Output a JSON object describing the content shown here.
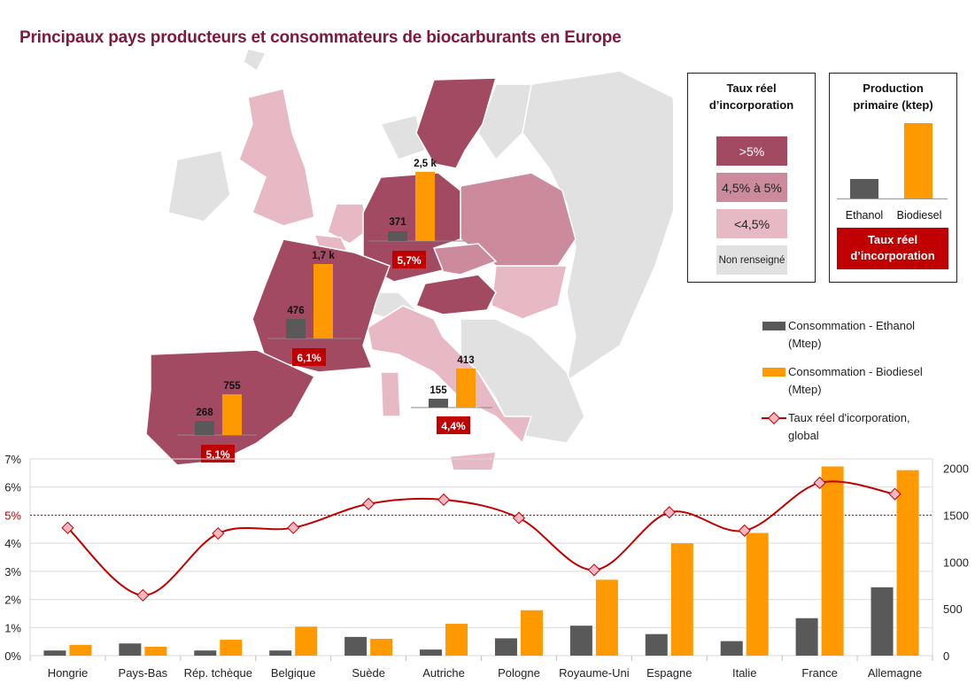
{
  "title": "Principaux pays producteurs et consommateurs de biocarburants en Europe",
  "legend_taux": {
    "title_line1": "Taux réel",
    "title_line2": "d’incorporation",
    "items": [
      ">5%",
      "4,5% à 5%",
      "<4,5%",
      "Non renseigné"
    ]
  },
  "legend_production": {
    "title_line1": "Production",
    "title_line2": "primaire (ktep)",
    "labels": [
      "Ethanol",
      "Biodiesel"
    ],
    "badge_line1": "Taux réel",
    "badge_line2": "d’incorporation"
  },
  "series_legend": {
    "ethanol_line1": "Consommation - Ethanol",
    "ethanol_line2": "(Mtep)",
    "biodiesel_line1": "Consommation - Biodiesel",
    "biodiesel_line2": "(Mtep)",
    "rate_line1": "Taux réel d'icorporation,",
    "rate_line2": "global"
  },
  "map_callouts": [
    {
      "country": "Allemagne",
      "ethanol": "371",
      "biodiesel": "2,5 k",
      "rate": "5,7%"
    },
    {
      "country": "France",
      "ethanol": "476",
      "biodiesel": "1,7 k",
      "rate": "6,1%"
    },
    {
      "country": "Espagne",
      "ethanol": "268",
      "biodiesel": "755",
      "rate": "5,1%"
    },
    {
      "country": "Italie",
      "ethanol": "155",
      "biodiesel": "413",
      "rate": "4,4%"
    }
  ],
  "colors": {
    "title": "#7b1a3c",
    "ethanol": "#595959",
    "biodiesel": "#ff9900",
    "rate_line": "#c00000",
    "rate_marker": "#f4b6c2",
    "badge": "#c00000",
    "map_dark": "#a24a61",
    "map_mid": "#cc8b9d",
    "map_light": "#e6b9c4",
    "map_none": "#e1e1e1"
  },
  "chart_data": {
    "type": "bar",
    "categories": [
      "Hongrie",
      "Pays-Bas",
      "Rép. tchèque",
      "Belgique",
      "Suède",
      "Autriche",
      "Pologne",
      "Royaume-Uni",
      "Espagne",
      "Italie",
      "France",
      "Allemagne"
    ],
    "series": [
      {
        "name": "Consommation - Ethanol (Mtep)",
        "axis": "right",
        "type": "bar",
        "values": [
          55,
          130,
          55,
          55,
          200,
          65,
          185,
          320,
          230,
          155,
          400,
          730
        ]
      },
      {
        "name": "Consommation - Biodiesel (Mtep)",
        "axis": "right",
        "type": "bar",
        "values": [
          115,
          95,
          170,
          310,
          180,
          340,
          485,
          810,
          1200,
          1310,
          2020,
          1980
        ]
      },
      {
        "name": "Taux réel d'icorporation, global",
        "axis": "left",
        "type": "line",
        "values": [
          4.55,
          2.15,
          4.35,
          4.55,
          5.4,
          5.55,
          4.9,
          3.05,
          5.1,
          4.45,
          6.15,
          5.75
        ]
      }
    ],
    "left_axis": {
      "min": 0,
      "max": 7,
      "ticks": [
        "0%",
        "1%",
        "2%",
        "3%",
        "4%",
        "5%",
        "6%",
        "7%"
      ]
    },
    "right_axis": {
      "min": 0,
      "max": 2100,
      "ticks": [
        "0",
        "500",
        "1000",
        "1500",
        "2000"
      ]
    },
    "reference_line": {
      "value": 5,
      "label": "5%"
    },
    "grid": true
  }
}
